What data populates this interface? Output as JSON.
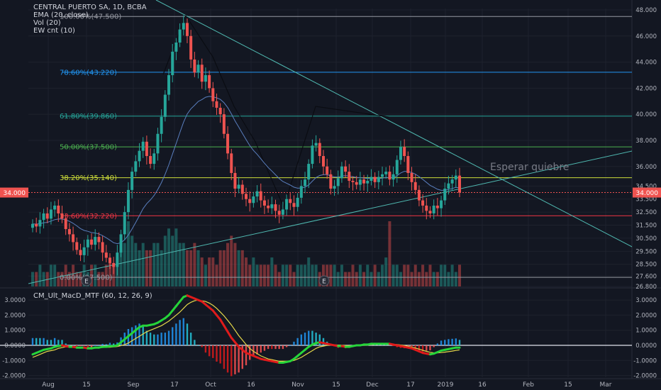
{
  "legend": {
    "symbol": "CENTRAL PUERTO SA, 1D, BCBA",
    "ema": "EMA (20, close)",
    "vol": "Vol (20)",
    "ew": "EW cnt (10)"
  },
  "indicator_title": "CM_Ult_MacD_MTF (60, 12, 26, 9)",
  "annotation": "Esperar quiebre",
  "price_tag": "34.000",
  "event_marker": "E",
  "colors": {
    "background": "#131722",
    "up": "#26a69a",
    "down": "#ef5350",
    "ema": "#5a7fbf",
    "trendline": "#4fb8b0",
    "macd_up": "#26d43a",
    "macd_down": "#e01b1b",
    "signal": "#e5d84a"
  },
  "chart_data": [
    {
      "type": "candlestick",
      "title": "CENTRAL PUERTO SA, 1D, BCBA",
      "x_ticks": [
        "Aug",
        "15",
        "Sep",
        "17",
        "Oct",
        "16",
        "Nov",
        "15",
        "Dec",
        "17",
        "2019",
        "16",
        "Feb",
        "15",
        "Mar"
      ],
      "y_ticks": [
        "48.000",
        "46.000",
        "44.000",
        "42.000",
        "40.000",
        "38.000",
        "36.000",
        "34.500",
        "33.500",
        "32.500",
        "31.500",
        "30.500",
        "29.500",
        "28.500",
        "27.600",
        "26.800"
      ],
      "ylim": [
        26.8,
        48.0
      ],
      "last_price": 34.0,
      "fibonacci": [
        {
          "label": "100.00%(47.500)",
          "level": 47.5,
          "color": "#9598a1"
        },
        {
          "label": "78.60%(43.220)",
          "level": 43.22,
          "color": "#2196f3"
        },
        {
          "label": "61.80%(39.860)",
          "level": 39.86,
          "color": "#26a69a"
        },
        {
          "label": "50.00%(37.500)",
          "level": 37.5,
          "color": "#4caf50"
        },
        {
          "label": "38.20%(35.140)",
          "level": 35.14,
          "color": "#cddc39"
        },
        {
          "label": "23.60%(32.220)",
          "level": 32.22,
          "color": "#f23645"
        },
        {
          "label": "0.00%(27.500)",
          "level": 27.5,
          "color": "#9598a1"
        }
      ],
      "close": [
        31.6,
        31.4,
        31.9,
        32.4,
        32.0,
        32.7,
        33.0,
        32.4,
        32.0,
        31.2,
        30.8,
        30.2,
        29.6,
        29.2,
        29.8,
        30.4,
        30.0,
        30.6,
        30.2,
        29.4,
        29.0,
        28.6,
        28.3,
        29.4,
        30.8,
        32.5,
        34.2,
        35.6,
        36.4,
        37.2,
        37.9,
        36.8,
        36.2,
        37.0,
        38.5,
        39.8,
        41.5,
        43.0,
        44.8,
        45.5,
        46.5,
        47.0,
        46.0,
        44.2,
        43.2,
        43.8,
        42.5,
        43.0,
        42.0,
        41.0,
        40.5,
        40.0,
        38.5,
        37.0,
        35.5,
        34.3,
        34.6,
        33.9,
        33.5,
        33.2,
        33.7,
        34.1,
        33.4,
        33.0,
        32.8,
        33.1,
        32.6,
        32.3,
        32.7,
        33.5,
        33.2,
        32.9,
        33.6,
        34.5,
        35.0,
        36.2,
        37.6,
        37.8,
        36.8,
        36.0,
        35.4,
        34.3,
        34.5,
        35.1,
        36.0,
        35.6,
        34.9,
        34.8,
        34.6,
        35.0,
        34.7,
        34.9,
        35.2,
        34.8,
        35.2,
        35.4,
        35.6,
        35.0,
        35.4,
        36.5,
        37.5,
        36.8,
        35.5,
        34.8,
        34.2,
        33.4,
        33.0,
        32.6,
        32.4,
        33.0,
        32.8,
        33.4,
        34.3,
        34.7,
        35.0,
        35.3,
        34.0
      ],
      "volume": [
        2,
        2,
        3,
        2,
        2,
        3,
        3,
        2,
        2,
        3,
        2,
        3,
        2,
        2,
        3,
        2,
        3,
        3,
        2,
        2,
        3,
        4,
        3,
        4,
        5,
        6,
        9,
        7,
        6,
        5,
        6,
        5,
        5,
        6,
        6,
        5,
        7,
        8,
        7,
        8,
        6,
        6,
        5,
        5,
        6,
        5,
        4,
        3,
        4,
        4,
        3,
        5,
        5,
        6,
        7,
        6,
        5,
        5,
        4,
        3,
        4,
        3,
        3,
        3,
        3,
        4,
        3,
        2,
        3,
        3,
        3,
        2,
        3,
        3,
        3,
        4,
        3,
        3,
        2,
        3,
        3,
        3,
        3,
        2,
        3,
        2,
        2,
        3,
        2,
        3,
        2,
        3,
        2,
        3,
        2,
        3,
        4,
        9,
        3,
        3,
        2,
        3,
        3,
        2,
        3,
        2,
        3,
        2,
        3,
        2,
        2,
        3,
        3,
        2,
        3,
        2,
        3
      ]
    },
    {
      "type": "line",
      "title": "CM_Ult_MacD_MTF (60, 12, 26, 9)",
      "y_ticks": [
        "3.0000",
        "2.0000",
        "1.0000",
        "0.0000",
        "-1.0000",
        "-2.0000"
      ],
      "ylim": [
        -2.0,
        3.5
      ],
      "series": [
        {
          "name": "MACD",
          "values": [
            -0.6,
            -0.5,
            -0.4,
            -0.3,
            -0.25,
            -0.2,
            -0.1,
            -0.05,
            0.0,
            -0.05,
            -0.1,
            -0.1,
            -0.15,
            -0.15,
            -0.15,
            -0.2,
            -0.2,
            -0.15,
            -0.15,
            -0.1,
            -0.1,
            -0.05,
            -0.05,
            0.0,
            0.2,
            0.4,
            0.6,
            0.8,
            1.0,
            1.2,
            1.3,
            1.3,
            1.35,
            1.4,
            1.5,
            1.65,
            1.8,
            2.0,
            2.3,
            2.6,
            2.9,
            3.2,
            3.3,
            3.2,
            3.1,
            3.0,
            2.9,
            2.7,
            2.5,
            2.3,
            2.0,
            1.7,
            1.3,
            0.9,
            0.5,
            0.2,
            -0.1,
            -0.3,
            -0.5,
            -0.6,
            -0.7,
            -0.8,
            -0.9,
            -0.95,
            -1.0,
            -1.05,
            -1.1,
            -1.15,
            -1.15,
            -1.1,
            -1.05,
            -0.9,
            -0.7,
            -0.5,
            -0.3,
            -0.1,
            0.05,
            0.15,
            0.2,
            0.15,
            0.1,
            0.05,
            0.0,
            -0.05,
            -0.05,
            -0.1,
            -0.1,
            -0.05,
            0.0,
            0.0,
            0.05,
            0.05,
            0.1,
            0.1,
            0.1,
            0.1,
            0.1,
            0.1,
            0.05,
            0.0,
            -0.05,
            -0.1,
            -0.15,
            -0.2,
            -0.3,
            -0.4,
            -0.5,
            -0.55,
            -0.6,
            -0.55,
            -0.45,
            -0.35,
            -0.3,
            -0.25,
            -0.2,
            -0.15,
            -0.15
          ]
        },
        {
          "name": "Signal",
          "values": [
            -0.8,
            -0.7,
            -0.6,
            -0.5,
            -0.4,
            -0.35,
            -0.3,
            -0.2,
            -0.15,
            -0.1,
            -0.1,
            -0.1,
            -0.12,
            -0.13,
            -0.14,
            -0.15,
            -0.15,
            -0.15,
            -0.15,
            -0.14,
            -0.13,
            -0.12,
            -0.1,
            -0.08,
            -0.02,
            0.05,
            0.15,
            0.3,
            0.45,
            0.6,
            0.75,
            0.9,
            1.0,
            1.1,
            1.2,
            1.3,
            1.45,
            1.6,
            1.8,
            2.0,
            2.2,
            2.45,
            2.7,
            2.85,
            2.95,
            3.0,
            2.95,
            2.9,
            2.8,
            2.65,
            2.45,
            2.2,
            1.95,
            1.65,
            1.35,
            1.0,
            0.65,
            0.35,
            0.05,
            -0.2,
            -0.4,
            -0.55,
            -0.7,
            -0.8,
            -0.9,
            -0.95,
            -1.0,
            -1.05,
            -1.05,
            -1.05,
            -1.05,
            -1.0,
            -0.9,
            -0.8,
            -0.65,
            -0.5,
            -0.35,
            -0.2,
            -0.1,
            -0.05,
            0.0,
            0.02,
            0.03,
            0.02,
            0.0,
            -0.02,
            -0.03,
            -0.03,
            -0.02,
            -0.01,
            0.0,
            0.02,
            0.04,
            0.05,
            0.06,
            0.07,
            0.07,
            0.07,
            0.06,
            0.05,
            0.02,
            -0.02,
            -0.07,
            -0.12,
            -0.18,
            -0.25,
            -0.33,
            -0.4,
            -0.46,
            -0.5,
            -0.5,
            -0.48,
            -0.45,
            -0.42,
            -0.38,
            -0.34,
            -0.3
          ]
        }
      ]
    }
  ]
}
